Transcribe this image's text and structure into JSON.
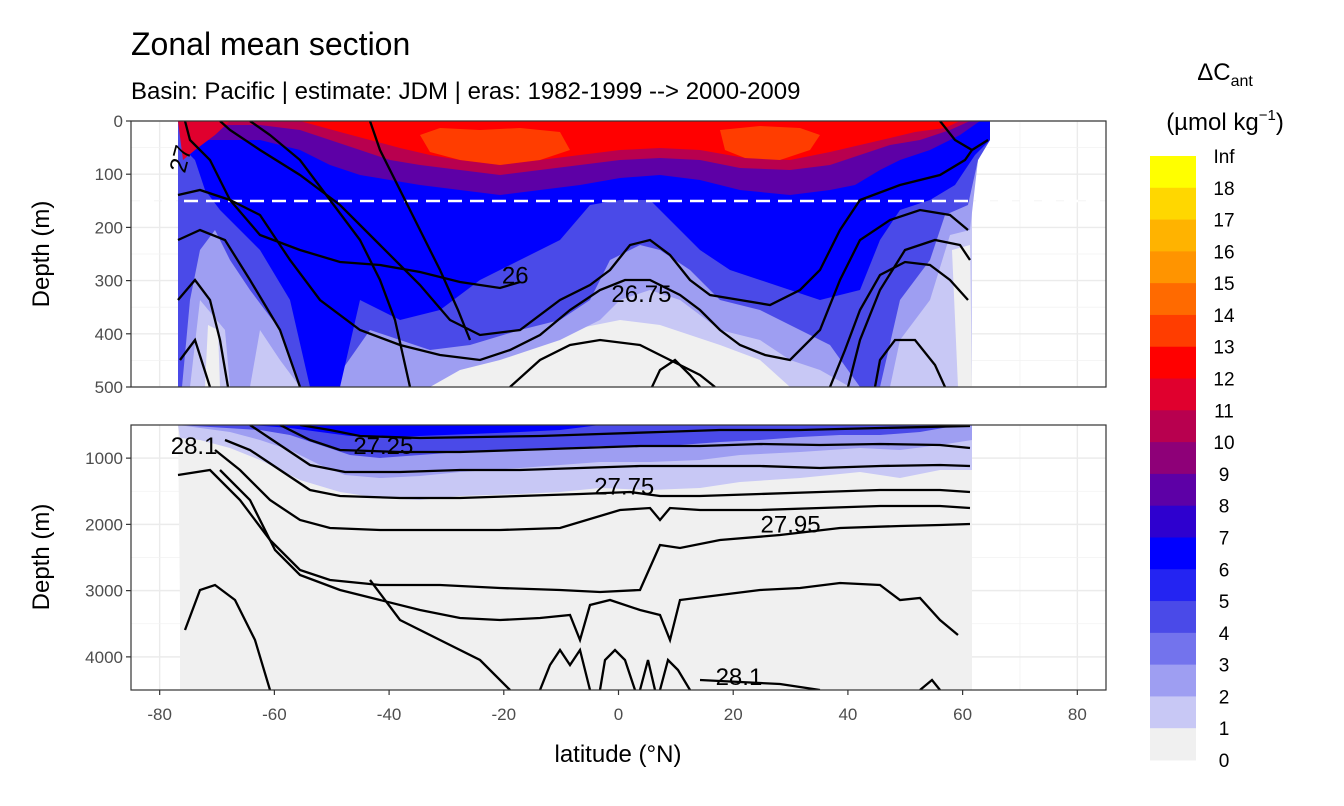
{
  "chart_data": {
    "type": "heatmap",
    "title": "Zonal mean section",
    "subtitle": "Basin: Pacific | estimate: JDM  | eras: 1982-1999 --> 2000-2009",
    "xlabel": "latitude (°N)",
    "ylabel": "Depth (m)",
    "x_ticks": [
      "-80",
      "-60",
      "-40",
      "-20",
      "0",
      "20",
      "40",
      "60",
      "80"
    ],
    "xlim": [
      -85,
      85
    ],
    "panels": [
      {
        "name": "upper",
        "ylim": [
          0,
          500
        ],
        "y_ticks": [
          "0",
          "100",
          "200",
          "300",
          "400",
          "500"
        ],
        "y_reversed": true
      },
      {
        "name": "lower",
        "ylim": [
          500,
          4500
        ],
        "y_ticks": [
          "1000",
          "2000",
          "3000",
          "4000"
        ],
        "y_reversed": true
      }
    ],
    "reference_line": {
      "depth": 150,
      "style": "dashed",
      "color": "#ffffff"
    },
    "legend": {
      "title_main": "ΔC",
      "title_sub": "ant",
      "units_line": "(µmol kg",
      "units_sup": "−1",
      "units_end": ")",
      "levels": [
        "Inf",
        "18",
        "17",
        "16",
        "15",
        "14",
        "13",
        "12",
        "11",
        "10",
        "9",
        "8",
        "7",
        "6",
        "5",
        "4",
        "3",
        "2",
        "1",
        "0"
      ],
      "colors": [
        "#ffff00",
        "#ffd700",
        "#ffb300",
        "#ff9400",
        "#ff6a00",
        "#ff3d00",
        "#ff0000",
        "#e0002e",
        "#b8004f",
        "#8e0078",
        "#5d00a6",
        "#2e00cf",
        "#0000ff",
        "#2424f2",
        "#4a4ae8",
        "#7373ed",
        "#9e9ef2",
        "#c8c8f5",
        "#f0f0f0"
      ]
    },
    "isopycnal_labels": [
      {
        "panel": "upper",
        "text": "26",
        "lat": -18,
        "depth": 290
      },
      {
        "panel": "upper",
        "text": "26.75",
        "lat": 4,
        "depth": 325
      },
      {
        "panel": "upper",
        "text": "27",
        "lat": -75,
        "depth": 60
      },
      {
        "panel": "lower",
        "text": "28.1",
        "lat": -74,
        "depth": 820
      },
      {
        "panel": "lower",
        "text": "27.25",
        "lat": -41,
        "depth": 820
      },
      {
        "panel": "lower",
        "text": "27.75",
        "lat": 1,
        "depth": 1430
      },
      {
        "panel": "lower",
        "text": "27.95",
        "lat": 30,
        "depth": 2000
      },
      {
        "panel": "lower",
        "text": "28.1",
        "lat": 21,
        "depth": 4300
      }
    ],
    "grid": true,
    "background": "#ffffff"
  }
}
